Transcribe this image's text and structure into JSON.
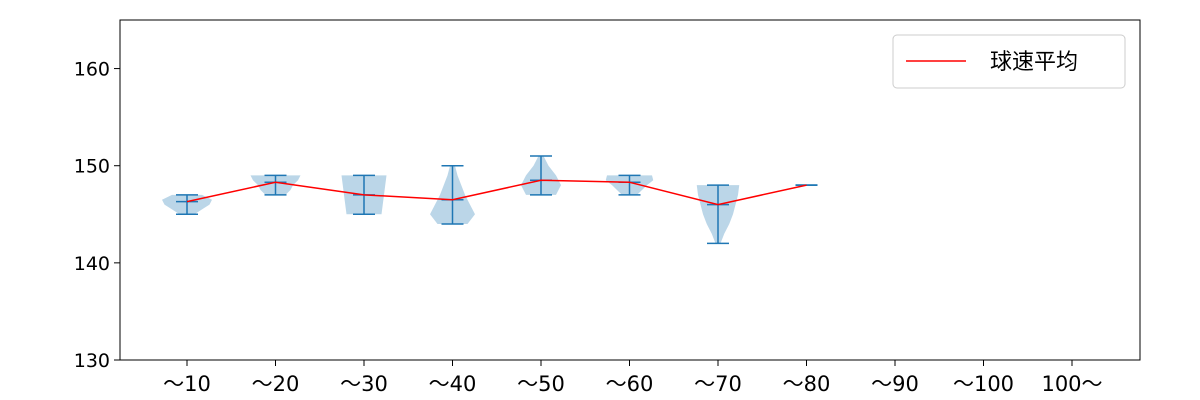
{
  "chart_data": {
    "type": "violin",
    "categories": [
      "～10",
      "～20",
      "～30",
      "～40",
      "～50",
      "～60",
      "～70",
      "～80",
      "～90",
      "～100",
      "100～"
    ],
    "ylim": [
      130,
      165
    ],
    "yticks": [
      130,
      140,
      150,
      160
    ],
    "grid": false,
    "legend_position": "top-right",
    "series": [
      {
        "name": "球速平均",
        "kind": "line",
        "color": "#ff0000",
        "values": [
          146.3,
          148.3,
          147.0,
          146.5,
          148.5,
          148.3,
          146.0,
          148.0,
          null,
          null,
          null
        ]
      }
    ],
    "violins": [
      {
        "category": "～10",
        "min": 145,
        "max": 147,
        "mean": 146.3,
        "profile": [
          [
            145,
            0.3
          ],
          [
            145.5,
            0.6
          ],
          [
            146,
            0.9
          ],
          [
            146.5,
            1.0
          ],
          [
            147,
            0.6
          ]
        ]
      },
      {
        "category": "～20",
        "min": 147,
        "max": 149,
        "mean": 148.3,
        "profile": [
          [
            147,
            0.4
          ],
          [
            147.5,
            0.6
          ],
          [
            148,
            0.7
          ],
          [
            148.5,
            0.9
          ],
          [
            149,
            1.0
          ]
        ]
      },
      {
        "category": "～30",
        "min": 145,
        "max": 149,
        "mean": 147.0,
        "profile": [
          [
            145,
            0.7
          ],
          [
            146,
            0.75
          ],
          [
            147,
            0.8
          ],
          [
            148,
            0.85
          ],
          [
            149,
            0.9
          ]
        ]
      },
      {
        "category": "～40",
        "min": 144,
        "max": 150,
        "mean": 146.5,
        "profile": [
          [
            144,
            0.6
          ],
          [
            145,
            0.9
          ],
          [
            146,
            0.7
          ],
          [
            147,
            0.5
          ],
          [
            148,
            0.35
          ],
          [
            149,
            0.2
          ],
          [
            150,
            0.1
          ]
        ]
      },
      {
        "category": "～50",
        "min": 147,
        "max": 151,
        "mean": 148.5,
        "profile": [
          [
            147,
            0.6
          ],
          [
            148,
            0.8
          ],
          [
            149,
            0.6
          ],
          [
            150,
            0.3
          ],
          [
            151,
            0.1
          ]
        ]
      },
      {
        "category": "～60",
        "min": 147,
        "max": 149,
        "mean": 148.3,
        "profile": [
          [
            147,
            0.3
          ],
          [
            147.5,
            0.5
          ],
          [
            148,
            0.7
          ],
          [
            148.5,
            0.95
          ],
          [
            149,
            0.9
          ]
        ]
      },
      {
        "category": "～70",
        "min": 142,
        "max": 148,
        "mean": 146.0,
        "profile": [
          [
            142,
            0.1
          ],
          [
            143,
            0.25
          ],
          [
            144,
            0.45
          ],
          [
            145,
            0.6
          ],
          [
            146,
            0.7
          ],
          [
            147,
            0.8
          ],
          [
            148,
            0.85
          ]
        ]
      },
      {
        "category": "～80",
        "min": 148,
        "max": 148,
        "mean": 148.0,
        "profile": []
      }
    ],
    "colors": {
      "violin_fill": "#1f77b4",
      "violin_lines": "#1f77b4",
      "mean_line": "#ff0000",
      "axes": "#000000"
    }
  }
}
